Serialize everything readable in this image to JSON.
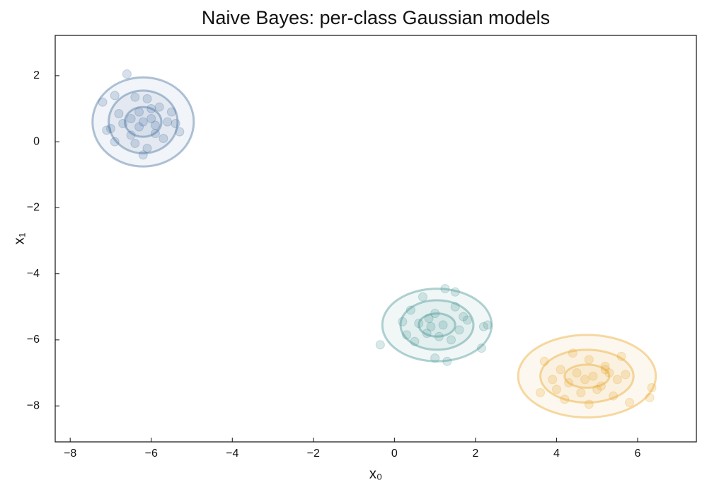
{
  "chart_data": {
    "type": "scatter",
    "title": "Naive Bayes: per-class Gaussian models",
    "xlabel": "x₀",
    "ylabel": "x₁",
    "xlim": [
      -8.37,
      7.45
    ],
    "ylim": [
      -9.09,
      3.22
    ],
    "xticks": [
      {
        "value": -8,
        "label": "−8"
      },
      {
        "value": -6,
        "label": "−6"
      },
      {
        "value": -4,
        "label": "−4"
      },
      {
        "value": -2,
        "label": "−2"
      },
      0,
      2,
      4,
      6
    ],
    "yticks": [
      {
        "value": -8,
        "label": "−8"
      },
      {
        "value": -6,
        "label": "−6"
      },
      {
        "value": -4,
        "label": "−4"
      },
      {
        "value": -2,
        "label": "−2"
      },
      0,
      2
    ],
    "series": [
      {
        "color": "#3b6a99",
        "x": [
          -6.6,
          -7.2,
          -6.9,
          -6.4,
          -6.1,
          -5.8,
          -5.5,
          -5.3,
          -6.3,
          -6.0,
          -6.7,
          -5.9,
          -6.2,
          -6.5,
          -7.0,
          -5.6,
          -6.4,
          -6.1,
          -5.7,
          -6.8,
          -6.3,
          -5.4,
          -6.9,
          -6.0,
          -6.5,
          -6.2,
          -5.9,
          -7.1
        ],
        "y": [
          2.05,
          1.2,
          1.4,
          1.35,
          1.3,
          1.05,
          0.9,
          0.3,
          0.9,
          0.7,
          0.55,
          0.5,
          0.6,
          0.2,
          0.4,
          0.6,
          -0.05,
          -0.2,
          0.1,
          0.85,
          0.45,
          0.55,
          0.0,
          1.0,
          0.7,
          -0.4,
          0.25,
          0.35
        ],
        "contours": {
          "center": [
            -6.2,
            0.6
          ],
          "rx": [
            0.45,
            0.85,
            1.25
          ],
          "ry": [
            0.45,
            0.95,
            1.35
          ]
        }
      },
      {
        "color": "#3f8f8f",
        "x": [
          1.25,
          0.7,
          0.4,
          1.0,
          1.5,
          1.8,
          2.2,
          0.2,
          0.6,
          0.9,
          1.2,
          1.6,
          0.8,
          1.1,
          1.4,
          0.3,
          1.7,
          0.5,
          2.3,
          1.3,
          1.0,
          1.5,
          -0.35,
          2.15,
          0.85
        ],
        "y": [
          -4.45,
          -4.7,
          -5.1,
          -5.2,
          -5.0,
          -5.4,
          -5.6,
          -5.45,
          -5.5,
          -5.6,
          -5.55,
          -5.7,
          -5.8,
          -5.9,
          -6.0,
          -5.85,
          -5.3,
          -6.05,
          -5.55,
          -6.65,
          -6.55,
          -4.55,
          -6.15,
          -6.25,
          -5.35
        ],
        "contours": {
          "center": [
            1.05,
            -5.55
          ],
          "rx": [
            0.45,
            0.9,
            1.35
          ],
          "ry": [
            0.35,
            0.75,
            1.1
          ]
        }
      },
      {
        "color": "#e8a21f",
        "x": [
          4.4,
          4.8,
          5.2,
          5.6,
          3.7,
          4.1,
          4.5,
          4.9,
          5.3,
          4.3,
          4.7,
          5.1,
          5.5,
          3.6,
          4.0,
          4.6,
          5.0,
          5.4,
          6.35,
          6.3,
          5.8,
          4.2,
          4.8,
          5.2,
          3.9,
          5.7
        ],
        "y": [
          -6.4,
          -6.6,
          -6.8,
          -6.5,
          -6.65,
          -6.9,
          -7.0,
          -7.1,
          -7.0,
          -7.3,
          -7.2,
          -7.4,
          -7.2,
          -7.6,
          -7.5,
          -7.6,
          -7.5,
          -7.7,
          -7.45,
          -7.75,
          -7.9,
          -7.8,
          -7.95,
          -6.9,
          -7.2,
          -7.05
        ],
        "contours": {
          "center": [
            4.75,
            -7.1
          ],
          "rx": [
            0.55,
            1.15,
            1.7
          ],
          "ry": [
            0.35,
            0.8,
            1.25
          ]
        }
      }
    ]
  }
}
